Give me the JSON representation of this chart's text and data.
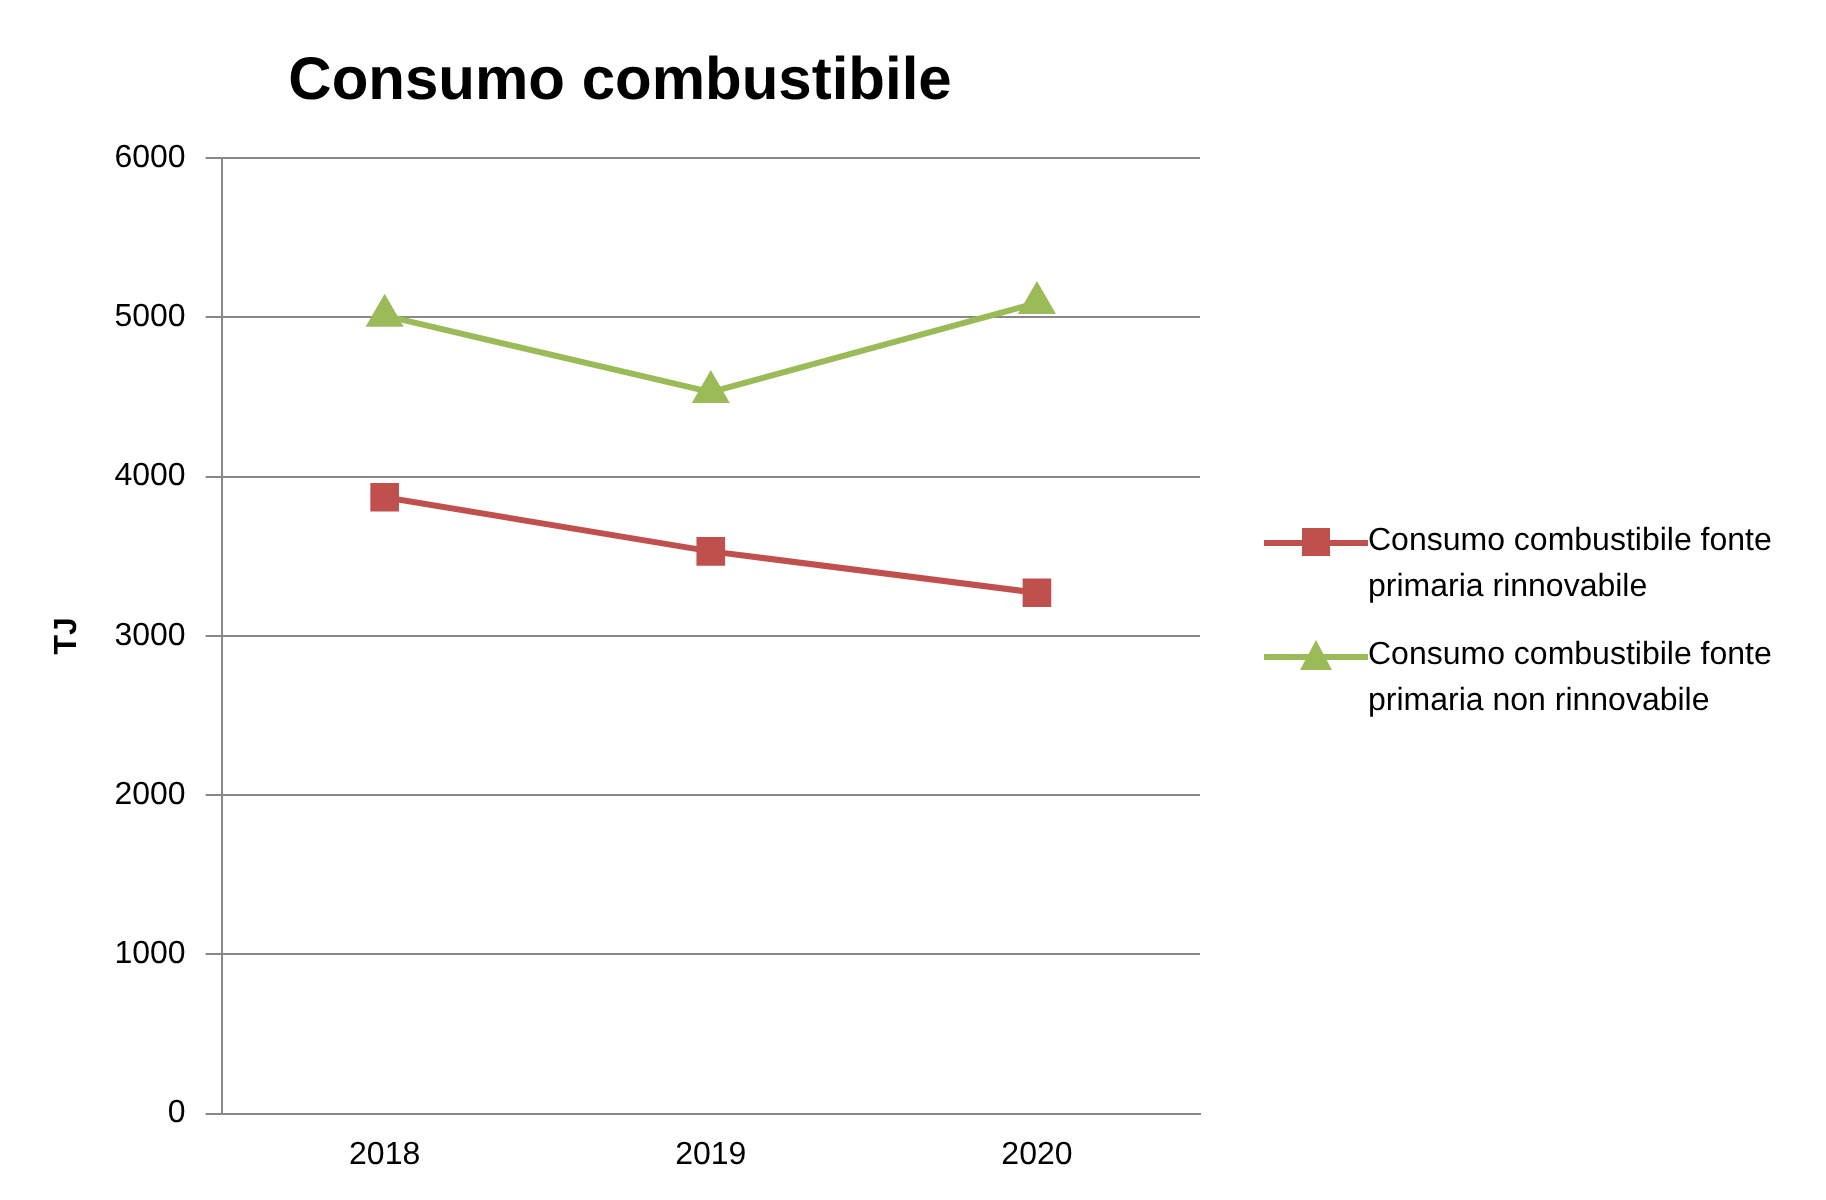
{
  "chart_data": {
    "type": "line",
    "title": "Consumo combustibile",
    "ylabel": "TJ",
    "categories": [
      "2018",
      "2019",
      "2020"
    ],
    "series": [
      {
        "name": "Consumo combustibile fonte primaria rinnovabile",
        "color": "#c0504d",
        "marker": "square",
        "values": [
          3870,
          3530,
          3270
        ]
      },
      {
        "name": "Consumo combustibile fonte primaria non rinnovabile",
        "color": "#9bbb59",
        "marker": "triangle",
        "values": [
          5010,
          4530,
          5090
        ]
      }
    ],
    "ylim": [
      0,
      6000
    ],
    "yticks": [
      0,
      1000,
      2000,
      3000,
      4000,
      5000,
      6000
    ],
    "grid": "y",
    "legend": "right"
  }
}
